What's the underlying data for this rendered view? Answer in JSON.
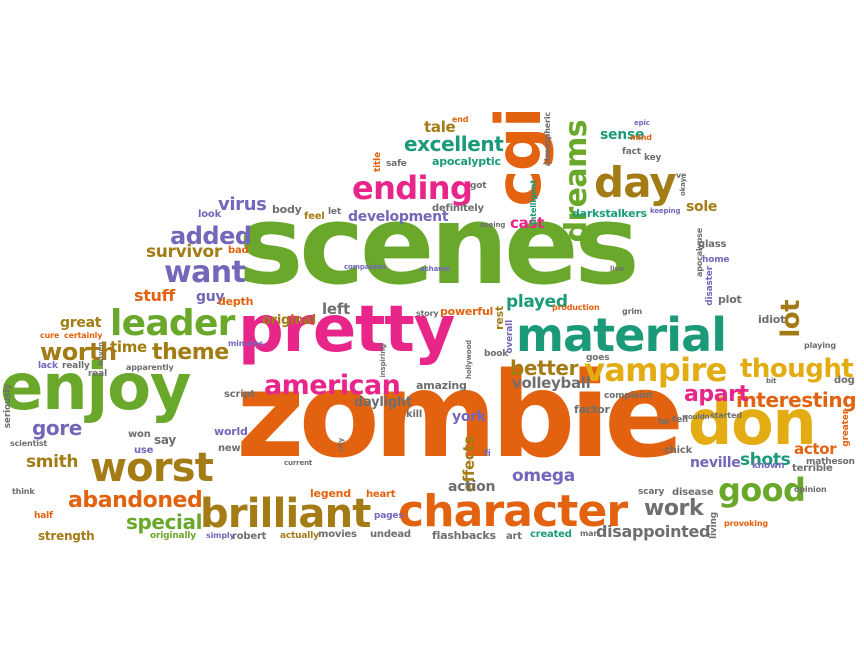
{
  "palette": {
    "orange": "#e3620f",
    "green": "#6aa82b",
    "magenta": "#e8268a",
    "teal": "#1b9a7a",
    "purple": "#7466b8",
    "olive": "#a47c16",
    "yellow": "#e2ac12",
    "gray": "#6e6e6e"
  },
  "words": {
    "scenes": "scenes",
    "zombie": "zombie",
    "pretty": "pretty",
    "material": "material",
    "enjoy": "enjoy",
    "don": "don",
    "cgi": "cgi",
    "character": "character",
    "brilliant": "brilliant",
    "worst": "worst",
    "american": "american",
    "day": "day",
    "leader": "leader",
    "ending": "ending",
    "vampire": "vampire",
    "good": "good",
    "dreams": "dreams",
    "abandoned": "abandoned",
    "want": "want",
    "added": "added",
    "thought": "thought",
    "lot": "lot",
    "excellent": "excellent",
    "interesting": "interesting",
    "apart": "apart",
    "theme": "theme",
    "worth": "worth",
    "better": "better",
    "work": "work",
    "special": "special",
    "survivor": "survivor",
    "virus": "virus",
    "gore": "gore",
    "smith": "smith",
    "stuff": "stuff",
    "omega": "omega",
    "disappointed": "disappointed",
    "volleyball": "volleyball",
    "shots": "shots",
    "played": "played",
    "neville": "neville",
    "effects": "effects",
    "great": "great",
    "time": "time",
    "left": "left",
    "tale": "tale",
    "development": "development",
    "cast": "cast",
    "sense": "sense",
    "actor": "actor",
    "action": "action",
    "original": "original",
    "guy": "guy",
    "strength": "strength",
    "daylight": "daylight",
    "york": "york",
    "apocalyptic": "apocalyptic",
    "darkstalkers": "darkstalkers",
    "sole": "sole",
    "body": "body",
    "feel": "feel",
    "definitely": "definitely",
    "bad": "bad",
    "depth": "depth",
    "powerful": "powerful",
    "production": "production",
    "plot": "plot",
    "idiot": "idiot",
    "look": "look",
    "glass": "glass",
    "home": "home",
    "disaster": "disaster",
    "terrible": "terrible",
    "dog": "dog",
    "greater": "greater",
    "chick": "chick",
    "known": "known",
    "matheson": "matheson",
    "opinion": "opinion",
    "kill": "kill",
    "factor": "factor",
    "complaint": "complaint",
    "amazing": "amazing",
    "world": "world",
    "new": "new",
    "won": "won",
    "say": "say",
    "use": "use",
    "script": "script",
    "beach": "beach",
    "legend": "legend",
    "heart": "heart",
    "pages": "pages",
    "undead": "undead",
    "movies": "movies",
    "actually": "actually",
    "robert": "robert",
    "simply": "simply",
    "originally": "originally",
    "half": "half",
    "think": "think",
    "scientist": "scientist",
    "seriously": "seriously",
    "lack": "lack",
    "really": "really",
    "real": "real",
    "cure": "cure",
    "certainly": "certainly",
    "apparently": "apparently",
    "minutes": "minutes",
    "companion": "companion",
    "ashame": "ashame",
    "story": "story",
    "rest": "rest",
    "overall": "overall",
    "book": "book",
    "hollywood": "hollywood",
    "inspiring": "inspiring",
    "goes": "goes",
    "grim": "grim",
    "living": "living",
    "provoking": "provoking",
    "flashbacks": "flashbacks",
    "art": "art",
    "created": "created",
    "man": "man",
    "disease": "disease",
    "scary": "scary",
    "tell": "tell",
    "couldn": "couldn",
    "started": "started",
    "far": "far",
    "fi": "fi",
    "city": "city",
    "current": "current",
    "fact": "fact",
    "mind": "mind",
    "key": "key",
    "end": "end",
    "epic": "epic",
    "safe": "safe",
    "title": "title",
    "intelligent": "intelligent",
    "atmospheric": "atmospheric",
    "got": "got",
    "seeing": "seeing",
    "let": "let",
    "keeping": "keeping",
    "ve": "ve",
    "okay": "okay",
    "apocalypse": "apocalypse",
    "playing": "playing",
    "bit": "bit",
    "haven": "haven",
    "live": "live"
  }
}
